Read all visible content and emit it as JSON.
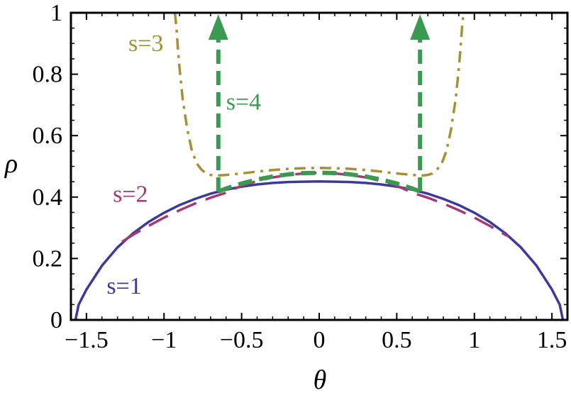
{
  "chart_data": {
    "type": "line",
    "xlabel": "θ",
    "ylabel": "ρ",
    "xlim": [
      -1.6,
      1.6
    ],
    "ylim": [
      0,
      1
    ],
    "grid": false,
    "x_ticks": [
      {
        "value": -1.5,
        "label": "−1.5"
      },
      {
        "value": -1,
        "label": "−1"
      },
      {
        "value": -0.5,
        "label": "−0.5"
      },
      {
        "value": 0,
        "label": "0"
      },
      {
        "value": 0.5,
        "label": "0.5"
      },
      {
        "value": 1,
        "label": "1"
      },
      {
        "value": 1.5,
        "label": "1.5"
      }
    ],
    "y_ticks": [
      {
        "value": 0,
        "label": "0"
      },
      {
        "value": 0.2,
        "label": "0.2"
      },
      {
        "value": 0.4,
        "label": "0.4"
      },
      {
        "value": 0.6,
        "label": "0.6"
      },
      {
        "value": 0.8,
        "label": "0.8"
      },
      {
        "value": 1,
        "label": "1"
      }
    ],
    "series": [
      {
        "name": "s=1",
        "color": "#3b3a9c",
        "style": "solid",
        "x": [
          -1.5708,
          -1.55,
          -1.5,
          -1.4,
          -1.3,
          -1.2,
          -1.1,
          -1.0,
          -0.9,
          -0.8,
          -0.7,
          -0.6,
          -0.5,
          -0.4,
          -0.3,
          -0.2,
          -0.1,
          0,
          0.1,
          0.2,
          0.3,
          0.4,
          0.5,
          0.6,
          0.7,
          0.8,
          0.9,
          1.0,
          1.1,
          1.2,
          1.3,
          1.4,
          1.5,
          1.55,
          1.5708
        ],
        "y": [
          0,
          0.05,
          0.099,
          0.177,
          0.236,
          0.282,
          0.319,
          0.349,
          0.374,
          0.394,
          0.411,
          0.424,
          0.434,
          0.441,
          0.446,
          0.449,
          0.45,
          0.451,
          0.45,
          0.449,
          0.446,
          0.441,
          0.434,
          0.424,
          0.411,
          0.394,
          0.374,
          0.349,
          0.319,
          0.282,
          0.236,
          0.177,
          0.099,
          0.05,
          0
        ]
      },
      {
        "name": "s=2",
        "color": "#a23a78",
        "style": "dashed",
        "x": [
          -1.27,
          -1.2,
          -1.1,
          -1.0,
          -0.9,
          -0.8,
          -0.7,
          -0.6,
          -0.5,
          -0.4,
          -0.3,
          -0.2,
          -0.1,
          0,
          0.1,
          0.2,
          0.3,
          0.4,
          0.5,
          0.6,
          0.7,
          0.8,
          0.9,
          1.0,
          1.1,
          1.2,
          1.22
        ],
        "y": [
          0.255,
          0.277,
          0.306,
          0.333,
          0.357,
          0.379,
          0.398,
          0.414,
          0.437,
          0.452,
          0.464,
          0.472,
          0.477,
          0.479,
          0.477,
          0.472,
          0.464,
          0.452,
          0.437,
          0.414,
          0.398,
          0.379,
          0.357,
          0.333,
          0.306,
          0.277,
          0.272
        ]
      },
      {
        "name": "s=3",
        "color": "#a69034",
        "style": "dashdot",
        "x": [
          -0.93,
          -0.92,
          -0.91,
          -0.9,
          -0.88,
          -0.85,
          -0.82,
          -0.79,
          -0.76,
          -0.73,
          -0.7,
          -0.66,
          -0.6,
          -0.5,
          -0.4,
          -0.3,
          -0.2,
          -0.1,
          0,
          0.1,
          0.2,
          0.3,
          0.4,
          0.5,
          0.6,
          0.66,
          0.7,
          0.73,
          0.76,
          0.79,
          0.82,
          0.85,
          0.88,
          0.9,
          0.91,
          0.92,
          0.93
        ],
        "y": [
          1.0,
          0.95,
          0.88,
          0.82,
          0.72,
          0.62,
          0.55,
          0.51,
          0.49,
          0.477,
          0.472,
          0.47,
          0.472,
          0.477,
          0.483,
          0.488,
          0.492,
          0.494,
          0.495,
          0.494,
          0.492,
          0.488,
          0.483,
          0.477,
          0.472,
          0.47,
          0.472,
          0.477,
          0.49,
          0.51,
          0.55,
          0.62,
          0.72,
          0.82,
          0.88,
          0.95,
          1.0
        ]
      },
      {
        "name": "s=4",
        "color": "#3a9a52",
        "style": "dashed-arrow",
        "x": [
          -0.65,
          -0.6,
          -0.5,
          -0.4,
          -0.3,
          -0.2,
          -0.1,
          0,
          0.1,
          0.2,
          0.3,
          0.4,
          0.5,
          0.6,
          0.65
        ],
        "y": [
          0.418,
          0.428,
          0.444,
          0.457,
          0.467,
          0.474,
          0.478,
          0.479,
          0.478,
          0.474,
          0.467,
          0.457,
          0.444,
          0.428,
          0.418
        ],
        "arrows": [
          {
            "x": -0.65,
            "y_from": 0.418,
            "y_to": 0.995
          },
          {
            "x": 0.65,
            "y_from": 0.418,
            "y_to": 0.995
          }
        ]
      }
    ],
    "annotations": [
      {
        "text": "s=1",
        "x": -1.37,
        "y": 0.085,
        "color": "#3b3a9c"
      },
      {
        "text": "s=2",
        "x": -1.33,
        "y": 0.385,
        "color": "#a23a78"
      },
      {
        "text": "s=3",
        "x": -1.23,
        "y": 0.875,
        "color": "#a69034"
      },
      {
        "text": "s=4",
        "x": -0.6,
        "y": 0.685,
        "color": "#3a9a52"
      }
    ]
  }
}
